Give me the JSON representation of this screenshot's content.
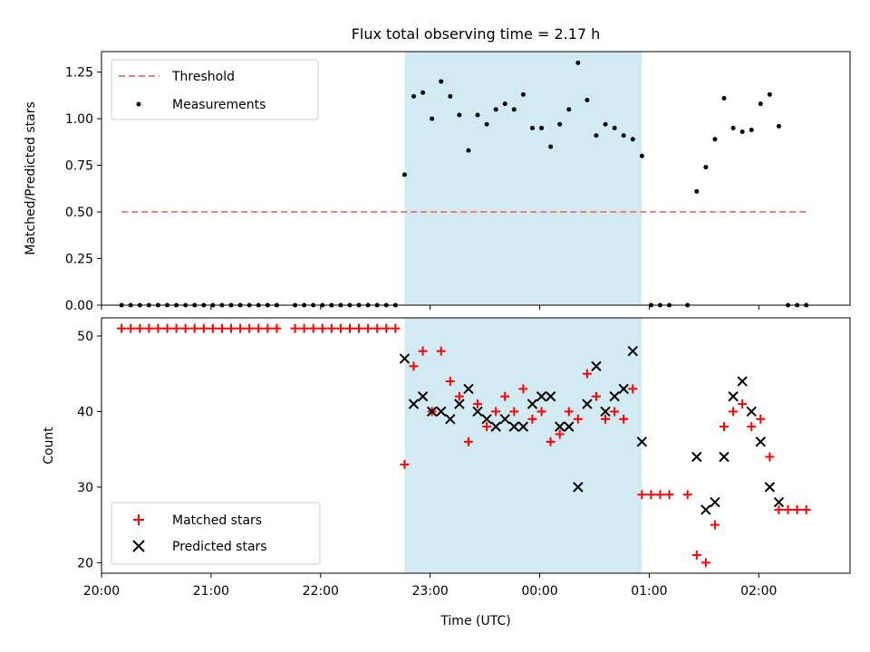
{
  "chart_data": [
    {
      "type": "scatter",
      "title": "Flux total observing time = 2.17 h",
      "xlabel": "",
      "ylabel": "Matched/Predicted stars",
      "xlim": [
        "20:00",
        "02:50"
      ],
      "ylim": [
        0,
        1.36
      ],
      "yticks": [
        0,
        0.25,
        0.5,
        0.75,
        1.0,
        1.25
      ],
      "ytick_labels": [
        "0.00",
        "0.25",
        "0.50",
        "0.75",
        "1.00",
        "1.25"
      ],
      "legend": {
        "placement": "top-left",
        "entries": [
          "Threshold",
          "Measurements"
        ]
      },
      "highlight_span": [
        "22:46",
        "00:56"
      ],
      "highlight_color": "#add8e6",
      "threshold": {
        "name": "Threshold",
        "value": 0.5,
        "x": [
          "20:11",
          "02:27"
        ],
        "color": "#f08080"
      },
      "series": [
        {
          "name": "Measurements",
          "color": "#000000",
          "x": [
            "20:11",
            "20:16",
            "20:21",
            "20:26",
            "20:31",
            "20:36",
            "20:41",
            "20:46",
            "20:51",
            "20:56",
            "21:01",
            "21:06",
            "21:11",
            "21:16",
            "21:21",
            "21:26",
            "21:31",
            "21:36",
            "21:46",
            "21:51",
            "21:56",
            "22:01",
            "22:06",
            "22:11",
            "22:16",
            "22:21",
            "22:26",
            "22:31",
            "22:36",
            "22:41",
            "22:46",
            "22:51",
            "22:56",
            "23:01",
            "23:06",
            "23:11",
            "23:16",
            "23:21",
            "23:26",
            "23:31",
            "23:36",
            "23:41",
            "23:46",
            "23:51",
            "23:56",
            "00:01",
            "00:06",
            "00:11",
            "00:16",
            "00:21",
            "00:26",
            "00:31",
            "00:36",
            "00:41",
            "00:46",
            "00:51",
            "00:56",
            "01:01",
            "01:06",
            "01:11",
            "01:21",
            "01:26",
            "01:31",
            "01:36",
            "01:41",
            "01:46",
            "01:51",
            "01:56",
            "02:01",
            "02:06",
            "02:11",
            "02:16",
            "02:21",
            "02:26"
          ],
          "y": [
            0,
            0,
            0,
            0,
            0,
            0,
            0,
            0,
            0,
            0,
            0,
            0,
            0,
            0,
            0,
            0,
            0,
            0,
            0,
            0,
            0,
            0,
            0,
            0,
            0,
            0,
            0,
            0,
            0,
            0,
            0.7,
            1.12,
            1.14,
            1.0,
            1.2,
            1.12,
            1.02,
            0.83,
            1.02,
            0.97,
            1.05,
            1.08,
            1.05,
            1.13,
            0.95,
            0.95,
            0.85,
            0.97,
            1.05,
            1.3,
            1.1,
            0.91,
            0.97,
            0.95,
            0.91,
            0.89,
            0.8,
            0,
            0,
            0,
            0,
            0.61,
            0.74,
            0.89,
            1.11,
            0.95,
            0.93,
            0.94,
            1.08,
            1.13,
            0.96,
            0,
            0,
            0
          ]
        }
      ]
    },
    {
      "type": "scatter",
      "title": "",
      "xlabel": "Time (UTC)",
      "ylabel": "Count",
      "xlim": [
        "20:00",
        "02:50"
      ],
      "ylim": [
        18.6,
        52.4
      ],
      "yticks": [
        20,
        30,
        40,
        50
      ],
      "ytick_labels": [
        "20",
        "30",
        "40",
        "50"
      ],
      "xticks": [
        "20:00",
        "21:00",
        "22:00",
        "23:00",
        "00:00",
        "01:00",
        "02:00"
      ],
      "legend": {
        "placement": "bottom-left",
        "entries": [
          "Matched stars",
          "Predicted stars"
        ]
      },
      "highlight_span": [
        "22:46",
        "00:56"
      ],
      "highlight_color": "#add8e6",
      "series": [
        {
          "name": "Matched stars",
          "marker": "plus",
          "color": "#ff0000",
          "x": [
            "20:11",
            "20:16",
            "20:21",
            "20:26",
            "20:31",
            "20:36",
            "20:41",
            "20:46",
            "20:51",
            "20:56",
            "21:01",
            "21:06",
            "21:11",
            "21:16",
            "21:21",
            "21:26",
            "21:31",
            "21:36",
            "21:46",
            "21:51",
            "21:56",
            "22:01",
            "22:06",
            "22:11",
            "22:16",
            "22:21",
            "22:26",
            "22:31",
            "22:36",
            "22:41",
            "22:46",
            "22:51",
            "22:56",
            "23:01",
            "23:06",
            "23:11",
            "23:16",
            "23:21",
            "23:26",
            "23:31",
            "23:36",
            "23:41",
            "23:46",
            "23:51",
            "23:56",
            "00:01",
            "00:06",
            "00:11",
            "00:16",
            "00:21",
            "00:26",
            "00:31",
            "00:36",
            "00:41",
            "00:46",
            "00:51",
            "00:56",
            "01:01",
            "01:06",
            "01:11",
            "01:21",
            "01:26",
            "01:31",
            "01:36",
            "01:41",
            "01:46",
            "01:51",
            "01:56",
            "02:01",
            "02:06",
            "02:11",
            "02:16",
            "02:21",
            "02:26"
          ],
          "y": [
            51,
            51,
            51,
            51,
            51,
            51,
            51,
            51,
            51,
            51,
            51,
            51,
            51,
            51,
            51,
            51,
            51,
            51,
            51,
            51,
            51,
            51,
            51,
            51,
            51,
            51,
            51,
            51,
            51,
            51,
            33,
            46,
            48,
            40,
            48,
            44,
            42,
            36,
            41,
            38,
            40,
            42,
            40,
            43,
            39,
            40,
            36,
            37,
            40,
            39,
            45,
            42,
            39,
            40,
            39,
            43,
            29,
            29,
            29,
            29,
            29,
            21,
            20,
            25,
            38,
            40,
            41,
            38,
            39,
            34,
            27,
            27,
            27,
            27
          ]
        },
        {
          "name": "Predicted stars",
          "marker": "x",
          "color": "#000000",
          "x": [
            "22:46",
            "22:51",
            "22:56",
            "23:01",
            "23:06",
            "23:11",
            "23:16",
            "23:21",
            "23:26",
            "23:31",
            "23:36",
            "23:41",
            "23:46",
            "23:51",
            "23:56",
            "00:01",
            "00:06",
            "00:11",
            "00:16",
            "00:21",
            "00:26",
            "00:31",
            "00:36",
            "00:41",
            "00:46",
            "00:51",
            "00:56",
            "01:26",
            "01:31",
            "01:36",
            "01:41",
            "01:46",
            "01:51",
            "01:56",
            "02:01",
            "02:06",
            "02:11"
          ],
          "y": [
            47,
            41,
            42,
            40,
            40,
            39,
            41,
            43,
            40,
            39,
            38,
            39,
            38,
            38,
            41,
            42,
            42,
            38,
            38,
            30,
            41,
            46,
            40,
            42,
            43,
            48,
            36,
            34,
            27,
            28,
            34,
            42,
            44,
            40,
            36,
            30,
            28
          ]
        }
      ]
    }
  ]
}
